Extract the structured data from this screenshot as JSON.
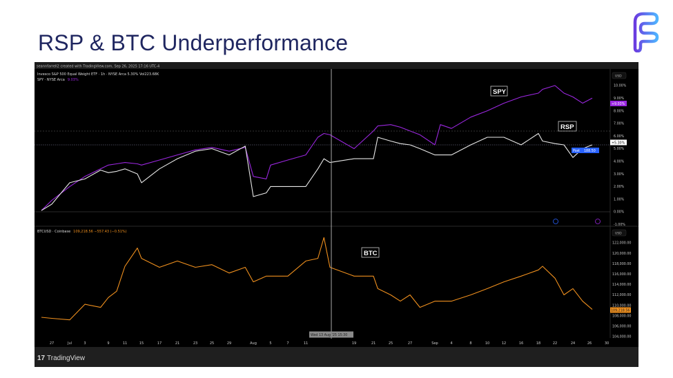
{
  "slide": {
    "title": "RSP & BTC Underperformance"
  },
  "logo": {
    "icon": "brand-f-logo",
    "colors": [
      "#6a3be0",
      "#4fb4ff"
    ]
  },
  "chart_header": {
    "credit": "seannfarrell2 created with TradingView.com, Sep 26, 2025 17:16 UTC-4",
    "legend_main": "Invesco S&P 500 Equal Weight ETF · 1h · NYSE Arca  5.30%  Vol223.68K",
    "legend_spy": "SPY · NYSE Arca",
    "legend_spy_value": "9.03%",
    "legend_btc": "BTCUSD · Coinbase",
    "legend_btc_value": "109,218.56  −557.43 (−0.51%)"
  },
  "annotations": {
    "spy": "SPY",
    "rsp": "RSP",
    "btc": "BTC"
  },
  "price_scale": {
    "currency": "USD",
    "spy_badge": "+9.03%",
    "rsp_badge": "+5.30%",
    "post_label": "Post",
    "post_value": "188.50",
    "btc_badge": "109,218.56"
  },
  "crosshair": {
    "label": "Wed 13 Aug '25 15:30"
  },
  "footer": {
    "brand": "TradingView"
  },
  "colors": {
    "spy": "#9b27e0",
    "rsp": "#e8e8e8",
    "btc": "#f0901e",
    "post": "#2962ff"
  },
  "chart_data": [
    {
      "type": "line",
      "title": "",
      "ylabel": "",
      "y_unit": "%",
      "ylim": [
        -1,
        10.3
      ],
      "y_ticks": [
        "10.00%",
        "9.00%",
        "8.00%",
        "7.00%",
        "6.00%",
        "5.00%",
        "4.00%",
        "3.00%",
        "2.00%",
        "1.00%",
        "0.00%",
        "-1.00%"
      ],
      "grid": false,
      "x": [
        "2025-06-26",
        "2025-06-27",
        "2025-07-01",
        "2025-07-03",
        "2025-07-07",
        "2025-07-09",
        "2025-07-10",
        "2025-07-11",
        "2025-07-14",
        "2025-07-15",
        "2025-07-17",
        "2025-07-21",
        "2025-07-23",
        "2025-07-25",
        "2025-07-29",
        "2025-07-31",
        "2025-08-01",
        "2025-08-04",
        "2025-08-05",
        "2025-08-07",
        "2025-08-11",
        "2025-08-13",
        "2025-08-14",
        "2025-08-15",
        "2025-08-19",
        "2025-08-21",
        "2025-08-22",
        "2025-08-25",
        "2025-08-26",
        "2025-08-27",
        "2025-08-29",
        "2025-09-01",
        "2025-09-02",
        "2025-09-04",
        "2025-09-08",
        "2025-09-10",
        "2025-09-12",
        "2025-09-16",
        "2025-09-18",
        "2025-09-19",
        "2025-09-22",
        "2025-09-23",
        "2025-09-24",
        "2025-09-25",
        "2025-09-26"
      ],
      "series": [
        {
          "name": "SPY",
          "values": [
            0.1,
            0.9,
            2.0,
            2.8,
            3.4,
            3.7,
            3.8,
            3.9,
            3.8,
            3.7,
            4.1,
            4.5,
            4.9,
            5.1,
            4.8,
            5.1,
            2.8,
            2.6,
            3.7,
            4.1,
            4.5,
            5.9,
            6.2,
            6.1,
            5.0,
            6.4,
            6.8,
            6.9,
            6.7,
            6.4,
            6.1,
            5.3,
            6.9,
            6.6,
            7.5,
            8.0,
            8.6,
            9.1,
            9.4,
            9.7,
            10.0,
            9.4,
            9.1,
            8.6,
            9.0
          ]
        },
        {
          "name": "RSP",
          "values": [
            0.1,
            0.6,
            2.3,
            2.6,
            3.3,
            3.1,
            3.2,
            3.4,
            3.0,
            2.3,
            3.4,
            4.2,
            4.8,
            5.0,
            4.5,
            5.2,
            1.2,
            1.5,
            2.0,
            2.0,
            2.0,
            3.4,
            4.2,
            3.9,
            4.2,
            4.2,
            5.9,
            5.6,
            5.4,
            5.3,
            5.0,
            4.5,
            4.5,
            4.5,
            5.3,
            5.9,
            5.9,
            5.3,
            6.2,
            5.6,
            5.4,
            5.3,
            4.3,
            5.0,
            5.3
          ]
        }
      ]
    },
    {
      "type": "line",
      "title": "",
      "ylabel": "",
      "ylim": [
        103000,
        123500
      ],
      "y_ticks": [
        "122,000.00",
        "120,000.00",
        "118,000.00",
        "116,000.00",
        "114,000.00",
        "112,000.00",
        "110,000.00",
        "108,000.00",
        "106,000.00",
        "104,000.00"
      ],
      "grid": false,
      "x_ticks": [
        "27",
        "Jul",
        "3",
        "9",
        "11",
        "15",
        "17",
        "21",
        "23",
        "25",
        "29",
        "Aug",
        "5",
        "7",
        "11",
        "19",
        "21",
        "25",
        "27",
        "Sep",
        "4",
        "8",
        "10",
        "12",
        "16",
        "18",
        "22",
        "24",
        "26",
        "30"
      ],
      "series": [
        {
          "name": "BTC",
          "values": [
            107700,
            107500,
            107200,
            110200,
            109600,
            111500,
            112700,
            117500,
            121000,
            119000,
            117300,
            118500,
            117300,
            117800,
            116200,
            117300,
            114500,
            115600,
            115600,
            115600,
            118500,
            119000,
            123000,
            117300,
            115600,
            115600,
            113200,
            112000,
            110800,
            112000,
            109600,
            110800,
            110800,
            110800,
            112000,
            113200,
            114500,
            115600,
            116800,
            117500,
            115200,
            112000,
            113200,
            110800,
            109200
          ]
        }
      ]
    }
  ]
}
